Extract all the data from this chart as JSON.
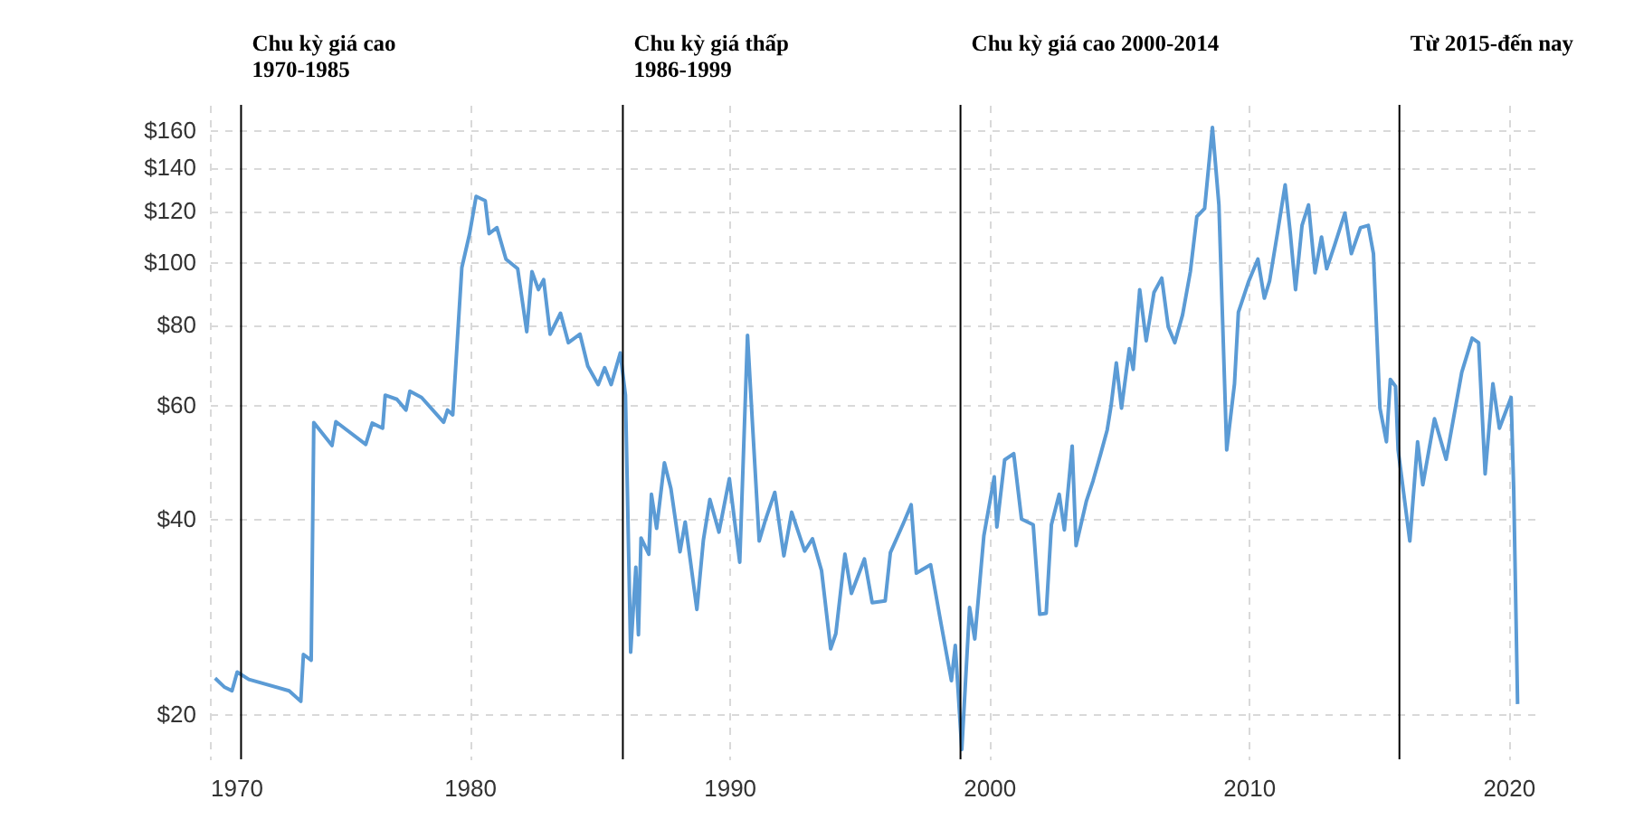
{
  "chart_data": {
    "type": "line",
    "x": [
      1970.2,
      1970.55,
      1970.85,
      1971.05,
      1971.5,
      1973.05,
      1973.5,
      1973.6,
      1973.9,
      1974.0,
      1974.7,
      1974.85,
      1976.0,
      1976.25,
      1976.65,
      1976.75,
      1977.2,
      1977.55,
      1977.7,
      1978.15,
      1979.0,
      1979.15,
      1979.35,
      1979.7,
      1980.0,
      1980.25,
      1980.6,
      1980.75,
      1981.05,
      1981.4,
      1981.85,
      1982.2,
      1982.4,
      1982.65,
      1982.85,
      1983.1,
      1983.5,
      1983.8,
      1984.25,
      1984.55,
      1984.95,
      1985.2,
      1985.45,
      1985.8,
      1986.0,
      1986.2,
      1986.4,
      1986.5,
      1986.6,
      1986.9,
      1987.0,
      1987.2,
      1987.5,
      1987.75,
      1988.1,
      1988.3,
      1988.75,
      1989.0,
      1989.25,
      1989.6,
      1990.0,
      1990.4,
      1990.7,
      1990.9,
      1991.15,
      1991.4,
      1991.75,
      1992.1,
      1992.4,
      1992.9,
      1993.2,
      1993.55,
      1993.9,
      1994.1,
      1994.45,
      1994.7,
      1995.2,
      1995.5,
      1996.0,
      1996.2,
      1996.7,
      1997.0,
      1997.2,
      1997.75,
      1998.1,
      1998.55,
      1998.7,
      1998.95,
      1999.25,
      1999.45,
      1999.8,
      2000.2,
      2000.3,
      2000.6,
      2000.95,
      2001.25,
      2001.7,
      2001.95,
      2002.2,
      2002.4,
      2002.7,
      2002.9,
      2003.2,
      2003.35,
      2003.75,
      2004.0,
      2004.3,
      2004.55,
      2004.7,
      2004.9,
      2005.1,
      2005.4,
      2005.55,
      2005.8,
      2006.05,
      2006.35,
      2006.65,
      2006.9,
      2007.15,
      2007.45,
      2007.75,
      2008.0,
      2008.3,
      2008.6,
      2008.85,
      2009.15,
      2009.45,
      2009.6,
      2010.0,
      2010.35,
      2010.6,
      2010.8,
      2011.1,
      2011.4,
      2011.6,
      2011.8,
      2012.05,
      2012.3,
      2012.55,
      2012.8,
      2013.0,
      2013.3,
      2013.7,
      2013.95,
      2014.3,
      2014.6,
      2014.8,
      2015.05,
      2015.3,
      2015.45,
      2015.65,
      2015.75,
      2016.2,
      2016.5,
      2016.7,
      2017.15,
      2017.6,
      2018.2,
      2018.6,
      2018.85,
      2019.1,
      2019.4,
      2019.65,
      2020.1,
      2020.2,
      2020.35
    ],
    "series": [
      {
        "color": "#5b9bd5",
        "values": [
          22.7,
          22.0,
          21.7,
          23.2,
          22.6,
          21.7,
          20.9,
          24.7,
          24.2,
          56.4,
          52.0,
          56.6,
          52.2,
          56.3,
          55.3,
          62.2,
          61.3,
          59.0,
          63.1,
          61.7,
          56.5,
          59.0,
          58.0,
          98.0,
          110.6,
          126.3,
          124.4,
          110.6,
          113,
          101,
          97.6,
          78.0,
          96.6,
          90.6,
          93.9,
          77.3,
          83.3,
          75.0,
          77.3,
          69.0,
          64.6,
          68.6,
          64.6,
          72.3,
          62.2,
          24.9,
          33.7,
          26.5,
          37.4,
          35.3,
          43.7,
          38.7,
          48.9,
          44.6,
          35.6,
          39.6,
          29.0,
          37.1,
          42.9,
          38.2,
          46.2,
          34.3,
          77.0,
          55.3,
          37.0,
          40.0,
          44.0,
          35.1,
          41.0,
          35.7,
          37.3,
          33.3,
          25.2,
          26.6,
          35.3,
          30.7,
          34.7,
          29.7,
          29.9,
          35.5,
          39.4,
          42.1,
          33.0,
          34.0,
          28.3,
          22.5,
          25.5,
          17.6,
          29.2,
          26.1,
          37.7,
          46.5,
          38.9,
          49.4,
          50.5,
          40.0,
          39.2,
          28.5,
          28.6,
          39.2,
          43.7,
          38.5,
          51.9,
          36.4,
          42.7,
          45.8,
          50.5,
          55.0,
          60.0,
          69.8,
          59.4,
          73.4,
          68.2,
          90.6,
          75.5,
          89.7,
          94.4,
          79.3,
          75.0,
          82.8,
          96.6,
          117.5,
          121,
          161.5,
          122.5,
          51.2,
          64.8,
          83.6,
          93.4,
          101,
          87.9,
          93.4,
          110.6,
          131.6,
          110.6,
          90.6,
          113.9,
          122.5,
          96.2,
          109.3,
          97.6,
          106,
          119,
          103,
          113,
          113.9,
          103,
          59.4,
          52.7,
          65.8,
          64.2,
          51.2,
          37.0,
          52.7,
          45.2,
          57.2,
          49.5,
          67.5,
          76.2,
          75.0,
          47.0,
          64.8,
          55.3,
          61.7,
          44.4,
          20.7
        ]
      }
    ],
    "log": true,
    "grid": true,
    "xlim": [
      1970,
      2021
    ],
    "xticks": [
      1970,
      1980,
      1990,
      2000,
      2010,
      2020
    ],
    "ylim": [
      17,
      175
    ],
    "yticks": [
      {
        "value": 20,
        "label": "$20"
      },
      {
        "value": 40,
        "label": "$40"
      },
      {
        "value": 60,
        "label": "$60"
      },
      {
        "value": 80,
        "label": "$80"
      },
      {
        "value": 100,
        "label": "$100"
      },
      {
        "value": 120,
        "label": "$120"
      },
      {
        "value": 140,
        "label": "$140"
      },
      {
        "value": 160,
        "label": "$160"
      }
    ],
    "ref_lines": [
      {
        "axis": "x",
        "value": 1971.2,
        "label": "Chu kỳ giá cao\n1970-1985",
        "color": "#000000"
      },
      {
        "axis": "x",
        "value": 1985.9,
        "label": "Chu kỳ giá thấp\n1986-1999",
        "color": "#000000"
      },
      {
        "axis": "x",
        "value": 1998.9,
        "label": "Chu kỳ giá cao 2000-2014",
        "color": "#000000"
      },
      {
        "axis": "x",
        "value": 2015.8,
        "label": "Từ 2015-đến nay",
        "color": "#000000"
      }
    ]
  }
}
